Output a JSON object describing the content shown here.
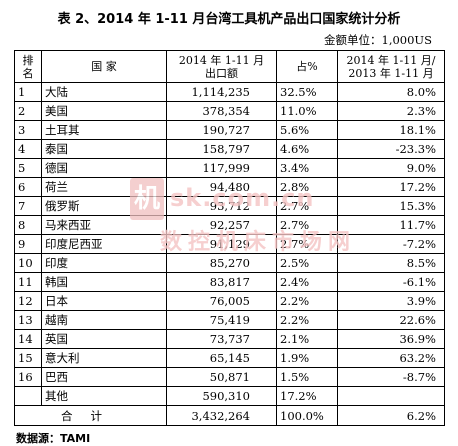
{
  "title": "表 2、2014 年 1-11 月台湾工具机产品出口国家统计分析",
  "unit": "金额单位：1,000US",
  "headers": {
    "rank": "排名",
    "country": "国 家",
    "value": "2014 年 1-11 月出口额",
    "share": "占%",
    "growth": "2014 年 1-11 月/2013 年 1-11 月"
  },
  "rows": [
    {
      "rank": "1",
      "country": "大陆",
      "value": "1,114,235",
      "share": "32.5%",
      "growth": "8.0%"
    },
    {
      "rank": "2",
      "country": "美国",
      "value": "378,354",
      "share": "11.0%",
      "growth": "2.3%"
    },
    {
      "rank": "3",
      "country": "土耳其",
      "value": "190,727",
      "share": "5.6%",
      "growth": "18.1%"
    },
    {
      "rank": "4",
      "country": "泰国",
      "value": "158,797",
      "share": "4.6%",
      "growth": "-23.3%"
    },
    {
      "rank": "5",
      "country": "德国",
      "value": "117,999",
      "share": "3.4%",
      "growth": "9.0%"
    },
    {
      "rank": "6",
      "country": "荷兰",
      "value": "94,480",
      "share": "2.8%",
      "growth": "17.2%"
    },
    {
      "rank": "7",
      "country": "俄罗斯",
      "value": "93,712",
      "share": "2.7%",
      "growth": "15.3%"
    },
    {
      "rank": "8",
      "country": "马来西亚",
      "value": "92,257",
      "share": "2.7%",
      "growth": "11.7%"
    },
    {
      "rank": "9",
      "country": "印度尼西亚",
      "value": "91,129",
      "share": "2.7%",
      "growth": "-7.2%"
    },
    {
      "rank": "10",
      "country": "印度",
      "value": "85,270",
      "share": "2.5%",
      "growth": "8.5%"
    },
    {
      "rank": "11",
      "country": "韩国",
      "value": "83,817",
      "share": "2.4%",
      "growth": "-6.1%"
    },
    {
      "rank": "12",
      "country": "日本",
      "value": "76,005",
      "share": "2.2%",
      "growth": "3.9%"
    },
    {
      "rank": "13",
      "country": "越南",
      "value": "75,419",
      "share": "2.2%",
      "growth": "22.6%"
    },
    {
      "rank": "14",
      "country": "英国",
      "value": "73,737",
      "share": "2.1%",
      "growth": "36.9%"
    },
    {
      "rank": "15",
      "country": "意大利",
      "value": "65,145",
      "share": "1.9%",
      "growth": "63.2%"
    },
    {
      "rank": "16",
      "country": "巴西",
      "value": "50,871",
      "share": "1.5%",
      "growth": "-8.7%"
    },
    {
      "rank": "",
      "country": "其他",
      "value": "590,310",
      "share": "17.2%",
      "growth": ""
    }
  ],
  "total": {
    "label": "合计",
    "value": "3,432,264",
    "share": "100.0%",
    "growth": "6.2%"
  },
  "source": "数据源：TAMI",
  "watermark": {
    "seal": "机",
    "line1": "sk.com.cn",
    "line2": "数控机床市场网",
    "color": "#f4c4c4"
  }
}
